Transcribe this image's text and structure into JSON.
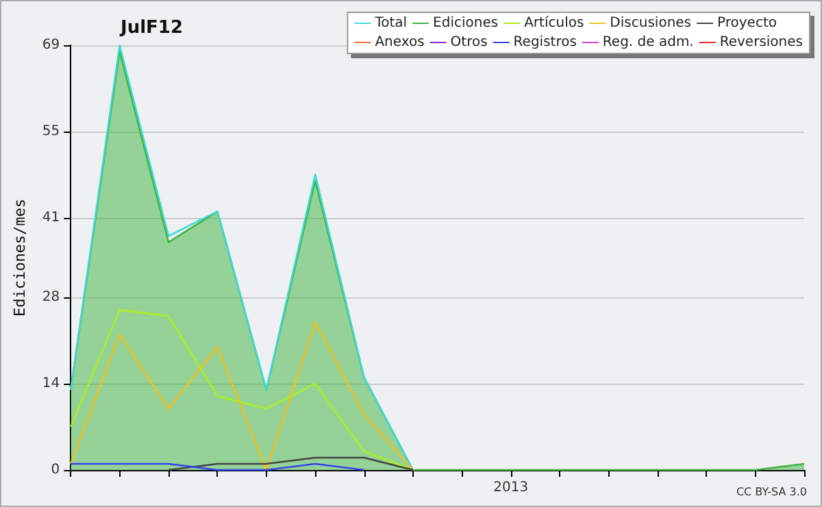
{
  "chart_data": {
    "type": "line",
    "title": "JulF12",
    "ylabel": "Ediciones/mes",
    "annotations": [
      "CC BY-SA 3.0"
    ],
    "categories": [
      null,
      null,
      null,
      null,
      null,
      null,
      null,
      null,
      null,
      "2013",
      null,
      null,
      null,
      null,
      null,
      null
    ],
    "ylim": [
      0,
      69
    ],
    "yticks": [
      0,
      14,
      28,
      41,
      55,
      69
    ],
    "grid": "y",
    "legend": "top right",
    "marker": "none",
    "line_style": "solid",
    "series": [
      {
        "name": "Total",
        "color": "#40d8d8",
        "values": [
          13,
          69,
          38,
          42,
          13,
          48,
          15,
          0,
          null,
          null,
          null,
          null,
          null,
          null,
          null,
          null
        ]
      },
      {
        "name": "Ediciones",
        "type": "area",
        "color": "#3cb43c",
        "values": [
          13,
          68,
          37,
          42,
          13,
          47,
          15,
          0,
          0,
          0,
          0,
          0,
          0,
          0,
          0,
          1
        ]
      },
      {
        "name": "Artículos",
        "color": "#aaee22",
        "values": [
          7,
          26,
          25,
          12,
          10,
          14,
          3,
          0,
          null,
          null,
          null,
          null,
          null,
          null,
          null,
          null
        ]
      },
      {
        "name": "Discusiones",
        "color": "#f0c020",
        "values": [
          1,
          22,
          10,
          20,
          0,
          24,
          9,
          0,
          null,
          null,
          null,
          null,
          null,
          null,
          null,
          null
        ]
      },
      {
        "name": "Proyecto",
        "color": "#444444",
        "values": [
          null,
          null,
          0,
          1,
          1,
          2,
          2,
          0,
          null,
          null,
          null,
          null,
          null,
          null,
          null,
          null
        ]
      },
      {
        "name": "Anexos",
        "color": "#f07040",
        "values": [
          null,
          null,
          null,
          null,
          null,
          null,
          null,
          null,
          null,
          null,
          null,
          null,
          null,
          null,
          null,
          null
        ]
      },
      {
        "name": "Otros",
        "color": "#8a2be2",
        "values": [
          null,
          null,
          null,
          null,
          null,
          null,
          null,
          null,
          null,
          null,
          null,
          null,
          null,
          null,
          null,
          null
        ]
      },
      {
        "name": "Registros",
        "color": "#3344ee",
        "values": [
          1,
          1,
          1,
          0,
          0,
          1,
          0,
          null,
          null,
          null,
          null,
          null,
          null,
          null,
          null,
          null
        ]
      },
      {
        "name": "Reg. de adm.",
        "color": "#d040d0",
        "values": [
          null,
          null,
          null,
          null,
          null,
          null,
          null,
          null,
          null,
          null,
          null,
          null,
          null,
          null,
          null,
          null
        ]
      },
      {
        "name": "Reversiones",
        "color": "#e03030",
        "values": [
          null,
          null,
          null,
          null,
          null,
          null,
          null,
          null,
          null,
          null,
          null,
          null,
          null,
          null,
          null,
          null
        ]
      }
    ]
  }
}
